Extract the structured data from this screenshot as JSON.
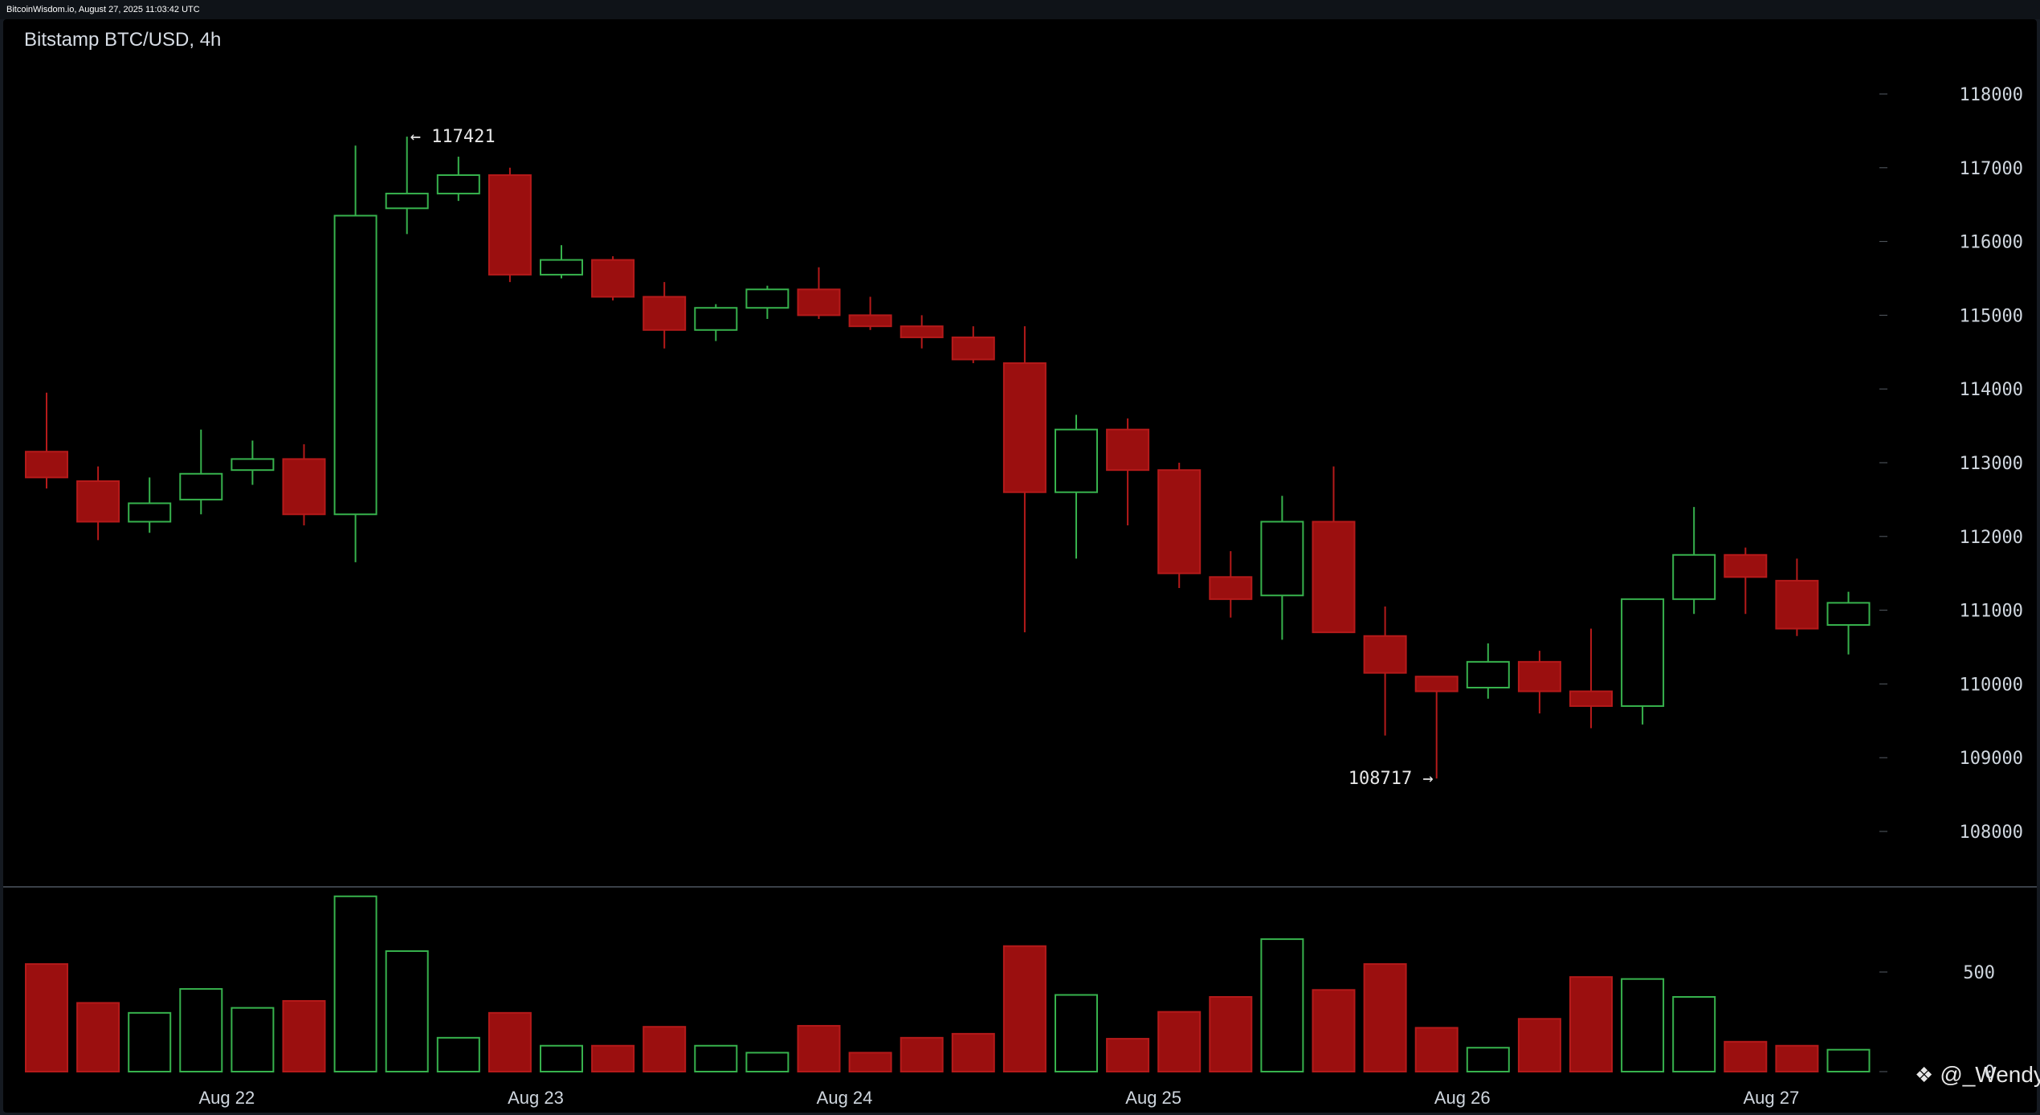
{
  "header": {
    "source": "BitcoinWisdom.io, August 27, 2025 11:03:42 UTC"
  },
  "watermark": {
    "icon": "binance-diamond-icon",
    "text": "@_Wendy"
  },
  "colors": {
    "up": "#37b24d",
    "down": "#9b0f0f",
    "down_stroke": "#b51a1a",
    "axis_text": "#cfd6de",
    "background": "#000000"
  },
  "chart_data": {
    "type": "candlestick",
    "title": "Bitstamp BTC/USD, 4h",
    "interval": "4h",
    "ylim": [
      107000,
      119000
    ],
    "y_ticks": [
      108000,
      109000,
      110000,
      111000,
      112000,
      113000,
      114000,
      115000,
      116000,
      117000,
      118000
    ],
    "x_labels": [
      "Aug 22",
      "Aug 23",
      "Aug 24",
      "Aug 25",
      "Aug 26",
      "Aug 27"
    ],
    "x_label_after_candle": [
      3.5,
      9.5,
      15.5,
      21.5,
      27.5,
      33.5
    ],
    "annotations": [
      {
        "text": "← 117421",
        "candle": 7,
        "value": 117421,
        "side": "right"
      },
      {
        "text": "108717 →",
        "candle": 27,
        "value": 108717,
        "side": "left"
      }
    ],
    "candles": [
      {
        "open": 113150,
        "high": 113950,
        "low": 112650,
        "close": 112800
      },
      {
        "open": 112750,
        "high": 112950,
        "low": 111950,
        "close": 112200
      },
      {
        "open": 112200,
        "high": 112800,
        "low": 112050,
        "close": 112450
      },
      {
        "open": 112500,
        "high": 113450,
        "low": 112300,
        "close": 112850
      },
      {
        "open": 112900,
        "high": 113300,
        "low": 112700,
        "close": 113050
      },
      {
        "open": 113050,
        "high": 113250,
        "low": 112150,
        "close": 112300
      },
      {
        "open": 112300,
        "high": 117300,
        "low": 111650,
        "close": 116350
      },
      {
        "open": 116450,
        "high": 117421,
        "low": 116100,
        "close": 116650
      },
      {
        "open": 116650,
        "high": 117150,
        "low": 116550,
        "close": 116900
      },
      {
        "open": 116900,
        "high": 117000,
        "low": 115450,
        "close": 115550
      },
      {
        "open": 115550,
        "high": 115950,
        "low": 115500,
        "close": 115750
      },
      {
        "open": 115750,
        "high": 115800,
        "low": 115200,
        "close": 115250
      },
      {
        "open": 115250,
        "high": 115450,
        "low": 114550,
        "close": 114800
      },
      {
        "open": 114800,
        "high": 115150,
        "low": 114650,
        "close": 115100
      },
      {
        "open": 115100,
        "high": 115400,
        "low": 114950,
        "close": 115350
      },
      {
        "open": 115350,
        "high": 115650,
        "low": 114950,
        "close": 115000
      },
      {
        "open": 115000,
        "high": 115250,
        "low": 114800,
        "close": 114850
      },
      {
        "open": 114850,
        "high": 115000,
        "low": 114550,
        "close": 114700
      },
      {
        "open": 114700,
        "high": 114850,
        "low": 114350,
        "close": 114400
      },
      {
        "open": 114350,
        "high": 114850,
        "low": 110700,
        "close": 112600
      },
      {
        "open": 112600,
        "high": 113650,
        "low": 111700,
        "close": 113450
      },
      {
        "open": 113450,
        "high": 113600,
        "low": 112150,
        "close": 112900
      },
      {
        "open": 112900,
        "high": 113000,
        "low": 111300,
        "close": 111500
      },
      {
        "open": 111450,
        "high": 111800,
        "low": 110900,
        "close": 111150
      },
      {
        "open": 111200,
        "high": 112550,
        "low": 110600,
        "close": 112200
      },
      {
        "open": 112200,
        "high": 112950,
        "low": 110700,
        "close": 110700
      },
      {
        "open": 110650,
        "high": 111050,
        "low": 109300,
        "close": 110150
      },
      {
        "open": 110100,
        "high": 110100,
        "low": 108717,
        "close": 109900
      },
      {
        "open": 109950,
        "high": 110550,
        "low": 109800,
        "close": 110300
      },
      {
        "open": 110300,
        "high": 110450,
        "low": 109600,
        "close": 109900
      },
      {
        "open": 109900,
        "high": 110750,
        "low": 109400,
        "close": 109700
      },
      {
        "open": 109700,
        "high": 111150,
        "low": 109450,
        "close": 111150
      },
      {
        "open": 111150,
        "high": 112400,
        "low": 110950,
        "close": 111750
      },
      {
        "open": 111750,
        "high": 111850,
        "low": 110950,
        "close": 111450
      },
      {
        "open": 111400,
        "high": 111700,
        "low": 110650,
        "close": 110750
      },
      {
        "open": 110800,
        "high": 111250,
        "low": 110400,
        "close": 111100
      }
    ],
    "volume": {
      "ylim": [
        0,
        900
      ],
      "y_ticks": [
        0,
        500
      ],
      "values": [
        540,
        345,
        295,
        415,
        320,
        355,
        880,
        605,
        170,
        295,
        130,
        130,
        225,
        130,
        95,
        230,
        95,
        170,
        190,
        630,
        385,
        165,
        300,
        375,
        665,
        410,
        540,
        220,
        120,
        265,
        475,
        465,
        375,
        150,
        130,
        110
      ]
    }
  }
}
